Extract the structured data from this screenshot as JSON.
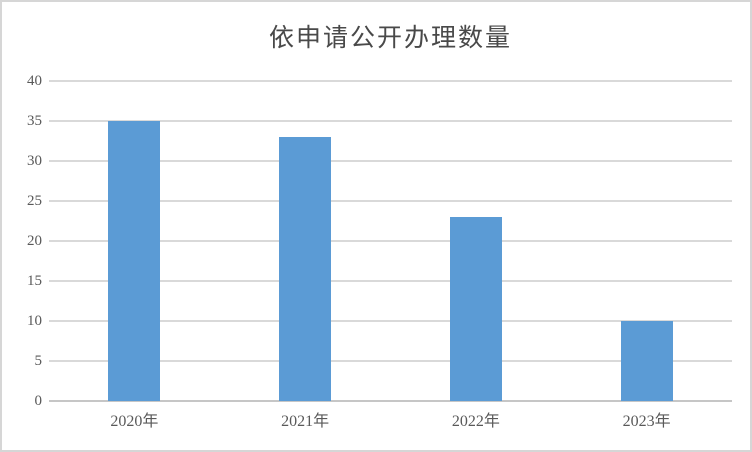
{
  "window": {
    "background": "#ffffff",
    "border_color": "#d6d6d6"
  },
  "chart_data": {
    "type": "bar",
    "title": "依申请公开办理数量",
    "categories": [
      "2020年",
      "2021年",
      "2022年",
      "2023年"
    ],
    "values": [
      35,
      33,
      23,
      10
    ],
    "xlabel": "",
    "ylabel": "",
    "ylim": [
      0,
      40
    ],
    "yticks": [
      0,
      5,
      10,
      15,
      20,
      25,
      30,
      35,
      40
    ],
    "grid": "horizontal",
    "legend": "none",
    "bar_color": "#5b9bd5",
    "gridline_color": "#d9d9d9",
    "axis_line_color": "#c6c6c6",
    "tick_label_color": "#595959",
    "title_color": "#494949"
  }
}
